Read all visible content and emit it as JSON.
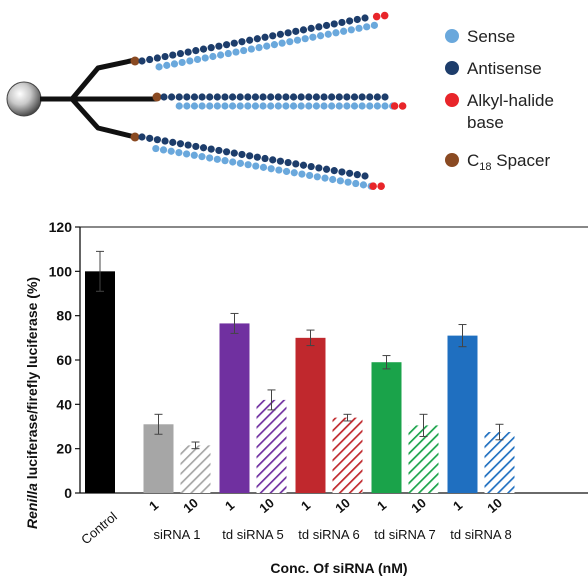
{
  "legend": {
    "items": [
      {
        "key": "sense",
        "label": "Sense",
        "color": "#6aa8dc"
      },
      {
        "key": "antisense",
        "label": "Antisense",
        "color": "#1d3d6b"
      },
      {
        "key": "alkyl",
        "label": "Alkyl-halide",
        "label2": "base",
        "color": "#e8252a"
      },
      {
        "key": "spacer",
        "label": "C",
        "sub": "18",
        "label_rest": " Spacer",
        "color": "#8a4a22"
      }
    ]
  },
  "chart_data": {
    "type": "bar",
    "ylabel_italic": "Renilla",
    "ylabel_rest": " luciferase/firefly luciferase (%)",
    "xlabel": "Conc. Of siRNA (nM)",
    "ylim": [
      0,
      120
    ],
    "yticks": [
      0,
      20,
      40,
      60,
      80,
      100,
      120
    ],
    "grid": false,
    "groups": [
      {
        "name": "Control",
        "color": "#000000",
        "bars": [
          {
            "conc": "",
            "value": 100,
            "err": 9,
            "hatched": false
          }
        ]
      },
      {
        "name": "siRNA 1",
        "color": "#a6a6a6",
        "bars": [
          {
            "conc": "1",
            "value": 31,
            "err": 4.5,
            "hatched": false
          },
          {
            "conc": "10",
            "value": 21.5,
            "err": 1.5,
            "hatched": true
          }
        ]
      },
      {
        "name": "td siRNA 5",
        "color": "#7030a0",
        "bars": [
          {
            "conc": "1",
            "value": 76.5,
            "err": 4.5,
            "hatched": false
          },
          {
            "conc": "10",
            "value": 42,
            "err": 4.5,
            "hatched": true
          }
        ]
      },
      {
        "name": "td siRNA 6",
        "color": "#c0282d",
        "bars": [
          {
            "conc": "1",
            "value": 70,
            "err": 3.5,
            "hatched": false
          },
          {
            "conc": "10",
            "value": 34,
            "err": 1.5,
            "hatched": true
          }
        ]
      },
      {
        "name": "td siRNA 7",
        "color": "#1aa34a",
        "bars": [
          {
            "conc": "1",
            "value": 59,
            "err": 3,
            "hatched": false
          },
          {
            "conc": "10",
            "value": 30.5,
            "err": 5,
            "hatched": true
          }
        ]
      },
      {
        "name": "td siRNA 8",
        "color": "#1f6fc0",
        "bars": [
          {
            "conc": "1",
            "value": 71,
            "err": 5,
            "hatched": false
          },
          {
            "conc": "10",
            "value": 27.5,
            "err": 3.5,
            "hatched": true
          }
        ]
      }
    ]
  }
}
